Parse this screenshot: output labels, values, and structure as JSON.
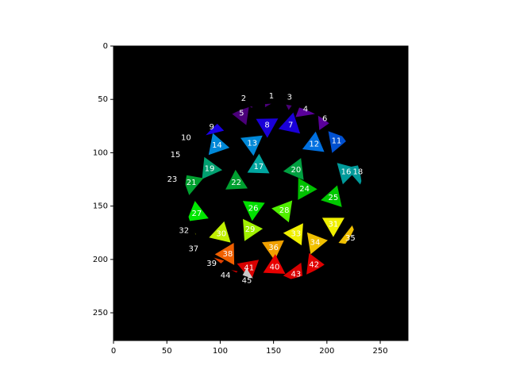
{
  "chart_data": {
    "type": "heatmap",
    "title": "",
    "xlabel": "",
    "ylabel": "",
    "image_width": 276,
    "image_height": 276,
    "xlim": [
      0,
      276
    ],
    "ylim": [
      276,
      0
    ],
    "xticks": [
      "0",
      "50",
      "100",
      "150",
      "200",
      "250"
    ],
    "yticks": [
      "0",
      "50",
      "100",
      "150",
      "200",
      "250"
    ],
    "background": "#000000",
    "sphere": {
      "cx": 150,
      "cy": 137,
      "r": 83
    },
    "segments": [
      {
        "id": "1",
        "x": 148,
        "y": 47,
        "color": "#4b007a"
      },
      {
        "id": "2",
        "x": 122,
        "y": 49,
        "color": "#4b007a"
      },
      {
        "id": "3",
        "x": 165,
        "y": 48,
        "color": "#4b007a"
      },
      {
        "id": "4",
        "x": 180,
        "y": 59,
        "color": "#5a009a"
      },
      {
        "id": "5",
        "x": 120,
        "y": 63,
        "color": "#4b007a"
      },
      {
        "id": "6",
        "x": 198,
        "y": 68,
        "color": "#5a009a"
      },
      {
        "id": "7",
        "x": 166,
        "y": 74,
        "color": "#1a00d8"
      },
      {
        "id": "8",
        "x": 144,
        "y": 74,
        "color": "#1a00d8"
      },
      {
        "id": "9",
        "x": 92,
        "y": 76,
        "color": "#1a00e6"
      },
      {
        "id": "10",
        "x": 68,
        "y": 86,
        "color": "#1a00e6"
      },
      {
        "id": "11",
        "x": 209,
        "y": 89,
        "color": "#0050d0"
      },
      {
        "id": "12",
        "x": 188,
        "y": 92,
        "color": "#0070e0"
      },
      {
        "id": "13",
        "x": 130,
        "y": 91,
        "color": "#0088d8"
      },
      {
        "id": "14",
        "x": 97,
        "y": 93,
        "color": "#0088d8"
      },
      {
        "id": "15",
        "x": 58,
        "y": 102,
        "color": "#1a00e6"
      },
      {
        "id": "16",
        "x": 218,
        "y": 118,
        "color": "#009a9a"
      },
      {
        "id": "17",
        "x": 136,
        "y": 113,
        "color": "#00a6a0"
      },
      {
        "id": "18",
        "x": 229,
        "y": 118,
        "color": "#009a9a"
      },
      {
        "id": "19",
        "x": 90,
        "y": 115,
        "color": "#00a070"
      },
      {
        "id": "20",
        "x": 171,
        "y": 116,
        "color": "#00a040"
      },
      {
        "id": "21",
        "x": 73,
        "y": 128,
        "color": "#00a030"
      },
      {
        "id": "22",
        "x": 115,
        "y": 128,
        "color": "#00a030"
      },
      {
        "id": "23",
        "x": 55,
        "y": 125,
        "color": "#009a70"
      },
      {
        "id": "24",
        "x": 179,
        "y": 134,
        "color": "#00c000"
      },
      {
        "id": "25",
        "x": 206,
        "y": 142,
        "color": "#00c800"
      },
      {
        "id": "26",
        "x": 131,
        "y": 152,
        "color": "#00e000"
      },
      {
        "id": "27",
        "x": 78,
        "y": 157,
        "color": "#00e800"
      },
      {
        "id": "28",
        "x": 160,
        "y": 154,
        "color": "#50f000"
      },
      {
        "id": "29",
        "x": 128,
        "y": 172,
        "color": "#a0f000"
      },
      {
        "id": "30",
        "x": 101,
        "y": 176,
        "color": "#c0f000"
      },
      {
        "id": "31",
        "x": 206,
        "y": 167,
        "color": "#f0f000"
      },
      {
        "id": "32",
        "x": 66,
        "y": 173,
        "color": "#d8f000"
      },
      {
        "id": "33",
        "x": 171,
        "y": 176,
        "color": "#f0f000"
      },
      {
        "id": "34",
        "x": 189,
        "y": 184,
        "color": "#f0c000"
      },
      {
        "id": "35",
        "x": 222,
        "y": 180,
        "color": "#f0c000"
      },
      {
        "id": "36",
        "x": 150,
        "y": 189,
        "color": "#f0a000"
      },
      {
        "id": "37",
        "x": 75,
        "y": 190,
        "color": "#e07000"
      },
      {
        "id": "38",
        "x": 107,
        "y": 195,
        "color": "#f06000"
      },
      {
        "id": "39",
        "x": 92,
        "y": 204,
        "color": "#e04000"
      },
      {
        "id": "40",
        "x": 151,
        "y": 207,
        "color": "#e80000"
      },
      {
        "id": "41",
        "x": 127,
        "y": 208,
        "color": "#d80000"
      },
      {
        "id": "42",
        "x": 188,
        "y": 205,
        "color": "#e00000"
      },
      {
        "id": "43",
        "x": 171,
        "y": 214,
        "color": "#d80000"
      },
      {
        "id": "44",
        "x": 105,
        "y": 215,
        "color": "#d00000"
      },
      {
        "id": "45",
        "x": 125,
        "y": 220,
        "color": "#c8c8c8"
      }
    ]
  }
}
